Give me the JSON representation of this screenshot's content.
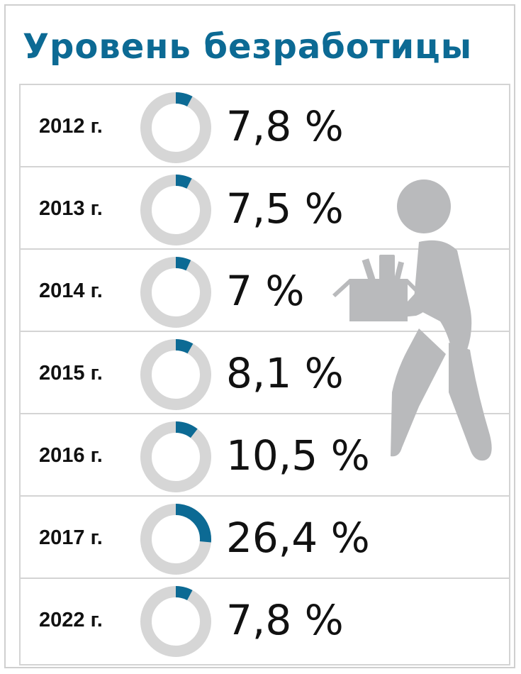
{
  "title": "Уровень безработицы",
  "colors": {
    "accent": "#0c6a94",
    "ring_bg": "#d6d6d6",
    "figure": "#b9babc"
  },
  "icons": {
    "figure": "person-carrying-box-icon"
  },
  "chart_data": {
    "type": "donut",
    "title": "Уровень безработицы",
    "unit": "%",
    "categories": [
      "2012 г.",
      "2013 г.",
      "2014 г.",
      "2015 г.",
      "2016 г.",
      "2017 г.",
      "2022 г."
    ],
    "values": [
      7.8,
      7.5,
      7,
      8.1,
      10.5,
      26.4,
      7.8
    ],
    "labels": [
      "7,8 %",
      "7,5 %",
      "7 %",
      "8,1 %",
      "10,5 %",
      "26,4 %",
      "7,8 %"
    ],
    "max": 100
  }
}
